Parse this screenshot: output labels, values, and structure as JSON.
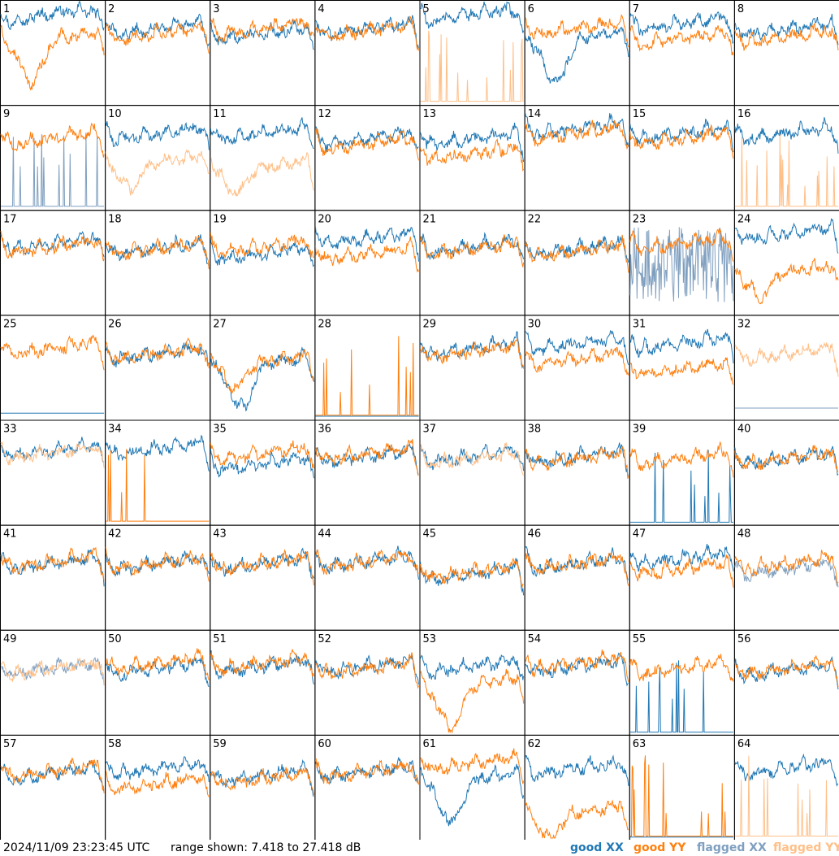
{
  "chart_data": {
    "type": "line",
    "timestamp": "2024/11/09 23:23:45 UTC",
    "range_text": "range shown: 7.418 to 27.418 dB",
    "ylim": [
      7.418,
      27.418
    ],
    "grid": {
      "rows": 8,
      "cols": 8
    },
    "legend": [
      {
        "label": "good XX",
        "color": "#1f77b4"
      },
      {
        "label": "good YY",
        "color": "#ff7f0e"
      },
      {
        "label": "flagged XX",
        "color": "#7f9fbf"
      },
      {
        "label": "flagged YY",
        "color": "#ffbf87"
      }
    ],
    "panels": [
      {
        "label": "1",
        "xx": {
          "status": "good",
          "shape": "hump",
          "level": 0.8
        },
        "yy": {
          "status": "good",
          "shape": "dip-deep",
          "level": 0.6
        }
      },
      {
        "label": "2",
        "xx": {
          "status": "good",
          "shape": "normal",
          "level": 0.7
        },
        "yy": {
          "status": "good",
          "shape": "normal",
          "level": 0.65
        }
      },
      {
        "label": "3",
        "xx": {
          "status": "good",
          "shape": "normal",
          "level": 0.65
        },
        "yy": {
          "status": "good",
          "shape": "normal",
          "level": 0.7
        }
      },
      {
        "label": "4",
        "xx": {
          "status": "good",
          "shape": "normal",
          "level": 0.7
        },
        "yy": {
          "status": "good",
          "shape": "normal",
          "level": 0.68
        }
      },
      {
        "label": "5",
        "xx": {
          "status": "good",
          "shape": "hump",
          "level": 0.8
        },
        "yy": {
          "status": "flagged",
          "shape": "spiky",
          "level": 0.1
        }
      },
      {
        "label": "6",
        "xx": {
          "status": "good",
          "shape": "dip-deep",
          "level": 0.6
        },
        "yy": {
          "status": "good",
          "shape": "normal",
          "level": 0.7
        }
      },
      {
        "label": "7",
        "xx": {
          "status": "good",
          "shape": "normal",
          "level": 0.75
        },
        "yy": {
          "status": "good",
          "shape": "normal",
          "level": 0.6
        }
      },
      {
        "label": "8",
        "xx": {
          "status": "good",
          "shape": "normal",
          "level": 0.7
        },
        "yy": {
          "status": "good",
          "shape": "normal",
          "level": 0.62
        }
      },
      {
        "label": "9",
        "xx": {
          "status": "flagged",
          "shape": "spiky",
          "level": 0.1
        },
        "yy": {
          "status": "good",
          "shape": "normal",
          "level": 0.65
        }
      },
      {
        "label": "10",
        "xx": {
          "status": "good",
          "shape": "normal",
          "level": 0.7
        },
        "yy": {
          "status": "flagged",
          "shape": "dip",
          "level": 0.5
        }
      },
      {
        "label": "11",
        "xx": {
          "status": "good",
          "shape": "normal",
          "level": 0.7
        },
        "yy": {
          "status": "flagged",
          "shape": "dip",
          "level": 0.45
        }
      },
      {
        "label": "12",
        "xx": {
          "status": "good",
          "shape": "normal",
          "level": 0.65
        },
        "yy": {
          "status": "good",
          "shape": "normal",
          "level": 0.6
        }
      },
      {
        "label": "13",
        "xx": {
          "status": "good",
          "shape": "normal",
          "level": 0.65
        },
        "yy": {
          "status": "good",
          "shape": "normal",
          "level": 0.5
        }
      },
      {
        "label": "14",
        "xx": {
          "status": "good",
          "shape": "normal",
          "level": 0.75
        },
        "yy": {
          "status": "good",
          "shape": "normal",
          "level": 0.7
        }
      },
      {
        "label": "15",
        "xx": {
          "status": "good",
          "shape": "normal",
          "level": 0.7
        },
        "yy": {
          "status": "good",
          "shape": "normal",
          "level": 0.65
        }
      },
      {
        "label": "16",
        "xx": {
          "status": "good",
          "shape": "normal",
          "level": 0.7
        },
        "yy": {
          "status": "flagged",
          "shape": "spiky",
          "level": 0.1
        }
      },
      {
        "label": "17",
        "xx": {
          "status": "good",
          "shape": "normal",
          "level": 0.65
        },
        "yy": {
          "status": "good",
          "shape": "normal",
          "level": 0.62
        }
      },
      {
        "label": "18",
        "xx": {
          "status": "good",
          "shape": "normal",
          "level": 0.6
        },
        "yy": {
          "status": "good",
          "shape": "normal",
          "level": 0.6
        }
      },
      {
        "label": "19",
        "xx": {
          "status": "good",
          "shape": "normal",
          "level": 0.55
        },
        "yy": {
          "status": "good",
          "shape": "normal",
          "level": 0.62
        }
      },
      {
        "label": "20",
        "xx": {
          "status": "good",
          "shape": "normal",
          "level": 0.7
        },
        "yy": {
          "status": "good",
          "shape": "normal",
          "level": 0.55
        }
      },
      {
        "label": "21",
        "xx": {
          "status": "good",
          "shape": "normal",
          "level": 0.62
        },
        "yy": {
          "status": "good",
          "shape": "normal",
          "level": 0.6
        }
      },
      {
        "label": "22",
        "xx": {
          "status": "good",
          "shape": "normal",
          "level": 0.6
        },
        "yy": {
          "status": "good",
          "shape": "normal",
          "level": 0.58
        }
      },
      {
        "label": "23",
        "xx": {
          "status": "flagged",
          "shape": "noisy",
          "level": 0.4
        },
        "yy": {
          "status": "good",
          "shape": "normal",
          "level": 0.65
        }
      },
      {
        "label": "24",
        "xx": {
          "status": "good",
          "shape": "normal",
          "level": 0.75
        },
        "yy": {
          "status": "good",
          "shape": "dip",
          "level": 0.45
        }
      },
      {
        "label": "25",
        "xx": {
          "status": "good",
          "shape": "flat",
          "level": 0.05
        },
        "yy": {
          "status": "good",
          "shape": "normal",
          "level": 0.65
        }
      },
      {
        "label": "26",
        "xx": {
          "status": "good",
          "shape": "normal",
          "level": 0.6
        },
        "yy": {
          "status": "good",
          "shape": "normal",
          "level": 0.6
        }
      },
      {
        "label": "27",
        "xx": {
          "status": "good",
          "shape": "dip-deep",
          "level": 0.5
        },
        "yy": {
          "status": "good",
          "shape": "dip",
          "level": 0.6
        }
      },
      {
        "label": "28",
        "xx": {
          "status": "good",
          "shape": "flat",
          "level": 0.02
        },
        "yy": {
          "status": "good",
          "shape": "spiky",
          "level": 0.15
        }
      },
      {
        "label": "29",
        "xx": {
          "status": "good",
          "shape": "normal",
          "level": 0.65
        },
        "yy": {
          "status": "good",
          "shape": "normal",
          "level": 0.62
        }
      },
      {
        "label": "30",
        "xx": {
          "status": "good",
          "shape": "normal",
          "level": 0.7
        },
        "yy": {
          "status": "good",
          "shape": "normal",
          "level": 0.55
        }
      },
      {
        "label": "31",
        "xx": {
          "status": "good",
          "shape": "normal",
          "level": 0.7
        },
        "yy": {
          "status": "good",
          "shape": "normal",
          "level": 0.45
        }
      },
      {
        "label": "32",
        "xx": {
          "status": "flagged",
          "shape": "flat",
          "level": 0.1
        },
        "yy": {
          "status": "flagged",
          "shape": "normal",
          "level": 0.6
        }
      },
      {
        "label": "33",
        "xx": {
          "status": "good",
          "shape": "normal",
          "level": 0.68
        },
        "yy": {
          "status": "flagged",
          "shape": "normal",
          "level": 0.66
        }
      },
      {
        "label": "34",
        "xx": {
          "status": "good",
          "shape": "normal",
          "level": 0.7
        },
        "yy": {
          "status": "good",
          "shape": "spiky",
          "level": 0.1
        }
      },
      {
        "label": "35",
        "xx": {
          "status": "good",
          "shape": "normal",
          "level": 0.55
        },
        "yy": {
          "status": "good",
          "shape": "normal",
          "level": 0.65
        }
      },
      {
        "label": "36",
        "xx": {
          "status": "good",
          "shape": "normal",
          "level": 0.62
        },
        "yy": {
          "status": "good",
          "shape": "normal",
          "level": 0.65
        }
      },
      {
        "label": "37",
        "xx": {
          "status": "good",
          "shape": "normal",
          "level": 0.62
        },
        "yy": {
          "status": "flagged",
          "shape": "normal",
          "level": 0.6
        }
      },
      {
        "label": "38",
        "xx": {
          "status": "good",
          "shape": "normal",
          "level": 0.62
        },
        "yy": {
          "status": "good",
          "shape": "normal",
          "level": 0.6
        }
      },
      {
        "label": "39",
        "xx": {
          "status": "good",
          "shape": "spiky",
          "level": 0.05
        },
        "yy": {
          "status": "good",
          "shape": "normal",
          "level": 0.6
        }
      },
      {
        "label": "40",
        "xx": {
          "status": "good",
          "shape": "normal",
          "level": 0.6
        },
        "yy": {
          "status": "good",
          "shape": "normal",
          "level": 0.6
        }
      },
      {
        "label": "41",
        "xx": {
          "status": "good",
          "shape": "normal",
          "level": 0.6
        },
        "yy": {
          "status": "good",
          "shape": "normal",
          "level": 0.62
        }
      },
      {
        "label": "42",
        "xx": {
          "status": "good",
          "shape": "normal",
          "level": 0.6
        },
        "yy": {
          "status": "good",
          "shape": "normal",
          "level": 0.6
        }
      },
      {
        "label": "43",
        "xx": {
          "status": "good",
          "shape": "normal",
          "level": 0.6
        },
        "yy": {
          "status": "good",
          "shape": "normal",
          "level": 0.6
        }
      },
      {
        "label": "44",
        "xx": {
          "status": "good",
          "shape": "normal",
          "level": 0.62
        },
        "yy": {
          "status": "good",
          "shape": "normal",
          "level": 0.62
        }
      },
      {
        "label": "45",
        "xx": {
          "status": "good",
          "shape": "normal",
          "level": 0.5
        },
        "yy": {
          "status": "good",
          "shape": "normal",
          "level": 0.52
        }
      },
      {
        "label": "46",
        "xx": {
          "status": "good",
          "shape": "normal",
          "level": 0.6
        },
        "yy": {
          "status": "good",
          "shape": "normal",
          "level": 0.6
        }
      },
      {
        "label": "47",
        "xx": {
          "status": "good",
          "shape": "normal",
          "level": 0.65
        },
        "yy": {
          "status": "good",
          "shape": "normal",
          "level": 0.55
        }
      },
      {
        "label": "48",
        "xx": {
          "status": "flagged",
          "shape": "normal",
          "level": 0.55
        },
        "yy": {
          "status": "good",
          "shape": "normal",
          "level": 0.6
        }
      },
      {
        "label": "49",
        "xx": {
          "status": "flagged",
          "shape": "normal",
          "level": 0.6
        },
        "yy": {
          "status": "flagged",
          "shape": "normal",
          "level": 0.6
        }
      },
      {
        "label": "50",
        "xx": {
          "status": "good",
          "shape": "normal",
          "level": 0.6
        },
        "yy": {
          "status": "good",
          "shape": "normal",
          "level": 0.65
        }
      },
      {
        "label": "51",
        "xx": {
          "status": "good",
          "shape": "normal",
          "level": 0.62
        },
        "yy": {
          "status": "good",
          "shape": "normal",
          "level": 0.65
        }
      },
      {
        "label": "52",
        "xx": {
          "status": "good",
          "shape": "normal",
          "level": 0.62
        },
        "yy": {
          "status": "good",
          "shape": "normal",
          "level": 0.6
        }
      },
      {
        "label": "53",
        "xx": {
          "status": "good",
          "shape": "normal",
          "level": 0.62
        },
        "yy": {
          "status": "good",
          "shape": "dip-deep",
          "level": 0.45
        }
      },
      {
        "label": "54",
        "xx": {
          "status": "good",
          "shape": "normal",
          "level": 0.62
        },
        "yy": {
          "status": "good",
          "shape": "normal",
          "level": 0.65
        }
      },
      {
        "label": "55",
        "xx": {
          "status": "good",
          "shape": "spiky",
          "level": 0.05
        },
        "yy": {
          "status": "good",
          "shape": "normal",
          "level": 0.6
        }
      },
      {
        "label": "56",
        "xx": {
          "status": "good",
          "shape": "normal",
          "level": 0.58
        },
        "yy": {
          "status": "good",
          "shape": "normal",
          "level": 0.6
        }
      },
      {
        "label": "57",
        "xx": {
          "status": "good",
          "shape": "normal",
          "level": 0.6
        },
        "yy": {
          "status": "good",
          "shape": "normal",
          "level": 0.62
        }
      },
      {
        "label": "58",
        "xx": {
          "status": "good",
          "shape": "normal",
          "level": 0.65
        },
        "yy": {
          "status": "good",
          "shape": "normal",
          "level": 0.5
        }
      },
      {
        "label": "59",
        "xx": {
          "status": "good",
          "shape": "normal",
          "level": 0.58
        },
        "yy": {
          "status": "good",
          "shape": "normal",
          "level": 0.55
        }
      },
      {
        "label": "60",
        "xx": {
          "status": "good",
          "shape": "normal",
          "level": 0.62
        },
        "yy": {
          "status": "good",
          "shape": "normal",
          "level": 0.62
        }
      },
      {
        "label": "61",
        "xx": {
          "status": "good",
          "shape": "dip-deep",
          "level": 0.55
        },
        "yy": {
          "status": "good",
          "shape": "normal",
          "level": 0.7
        }
      },
      {
        "label": "62",
        "xx": {
          "status": "good",
          "shape": "normal",
          "level": 0.65
        },
        "yy": {
          "status": "good",
          "shape": "dip",
          "level": 0.3
        }
      },
      {
        "label": "63",
        "xx": {
          "status": "good",
          "shape": "flat",
          "level": 0.01
        },
        "yy": {
          "status": "good",
          "shape": "spiky",
          "level": 0.1
        }
      },
      {
        "label": "64",
        "xx": {
          "status": "good",
          "shape": "normal",
          "level": 0.65
        },
        "yy": {
          "status": "flagged",
          "shape": "spiky",
          "level": 0.1
        }
      }
    ]
  },
  "footer": {
    "timestamp": "2024/11/09 23:23:45 UTC",
    "range": "range shown: 7.418 to 27.418 dB",
    "legend_good_xx": "good XX",
    "legend_good_yy": "good YY",
    "legend_flagged_xx": "flagged XX",
    "legend_flagged_yy": "flagged YY"
  }
}
